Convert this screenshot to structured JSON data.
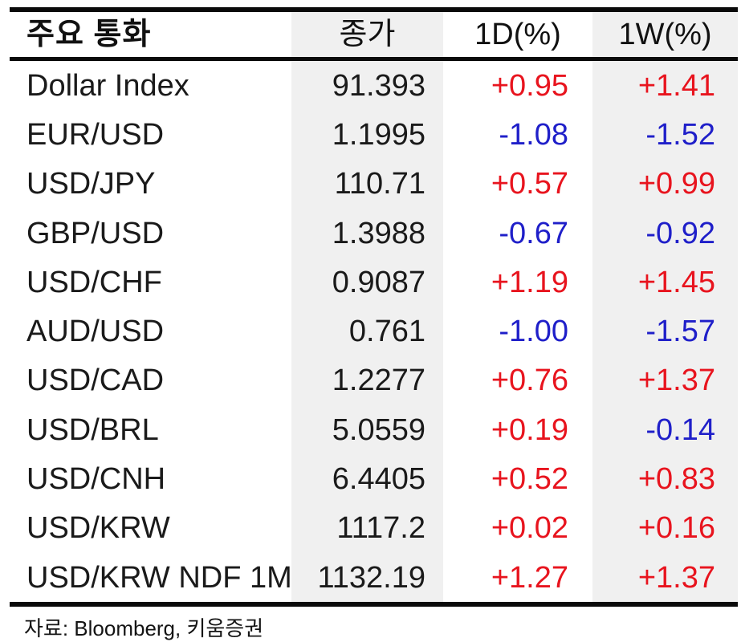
{
  "table": {
    "columns": [
      "주요 통화",
      "종가",
      "1D(%)",
      "1W(%)"
    ],
    "rows": [
      {
        "name": "Dollar Index",
        "close": "91.393",
        "d1": "+0.95",
        "w1": "+1.41"
      },
      {
        "name": "EUR/USD",
        "close": "1.1995",
        "d1": "-1.08",
        "w1": "-1.52"
      },
      {
        "name": "USD/JPY",
        "close": "110.71",
        "d1": "+0.57",
        "w1": "+0.99"
      },
      {
        "name": "GBP/USD",
        "close": "1.3988",
        "d1": "-0.67",
        "w1": "-0.92"
      },
      {
        "name": "USD/CHF",
        "close": "0.9087",
        "d1": "+1.19",
        "w1": "+1.45"
      },
      {
        "name": "AUD/USD",
        "close": "0.761",
        "d1": "-1.00",
        "w1": "-1.57"
      },
      {
        "name": "USD/CAD",
        "close": "1.2277",
        "d1": "+0.76",
        "w1": "+1.37"
      },
      {
        "name": "USD/BRL",
        "close": "5.0559",
        "d1": "+0.19",
        "w1": "-0.14"
      },
      {
        "name": "USD/CNH",
        "close": "6.4405",
        "d1": "+0.52",
        "w1": "+0.83"
      },
      {
        "name": "USD/KRW",
        "close": "1117.2",
        "d1": "+0.02",
        "w1": "+0.16"
      },
      {
        "name": "USD/KRW NDF 1M",
        "close": "1132.19",
        "d1": "+1.27",
        "w1": "+1.37"
      }
    ]
  },
  "footer": {
    "source": "자료: Bloomberg,  키움증권"
  },
  "colors": {
    "positive": "#e8141e",
    "negative": "#1f1fc9",
    "column_shade": "#f0f0f0",
    "rule": "#0a0a0a"
  }
}
